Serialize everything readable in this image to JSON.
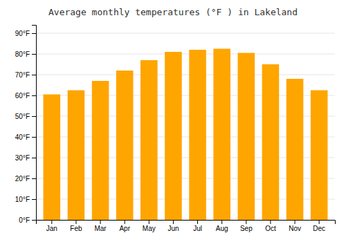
{
  "chart_data": {
    "type": "bar",
    "title": "Average monthly temperatures (°F ) in Lakeland",
    "categories": [
      "Jan",
      "Feb",
      "Mar",
      "Apr",
      "May",
      "Jun",
      "Jul",
      "Aug",
      "Sep",
      "Oct",
      "Nov",
      "Dec"
    ],
    "values": [
      60.5,
      62.5,
      67,
      72,
      77,
      81,
      82,
      82.5,
      80.5,
      75,
      68,
      62.5
    ],
    "color": "#FFA500",
    "ylim": [
      0,
      94
    ],
    "yticks": [
      {
        "value": 0,
        "label": "0°F"
      },
      {
        "value": 10,
        "label": "10°F"
      },
      {
        "value": 20,
        "label": "20°F"
      },
      {
        "value": 30,
        "label": "30°F"
      },
      {
        "value": 40,
        "label": "40°F"
      },
      {
        "value": 50,
        "label": "50°F"
      },
      {
        "value": 60,
        "label": "60°F"
      },
      {
        "value": 70,
        "label": "70°F"
      },
      {
        "value": 80,
        "label": "80°F"
      },
      {
        "value": 90,
        "label": "90°F"
      }
    ],
    "grid": true
  }
}
